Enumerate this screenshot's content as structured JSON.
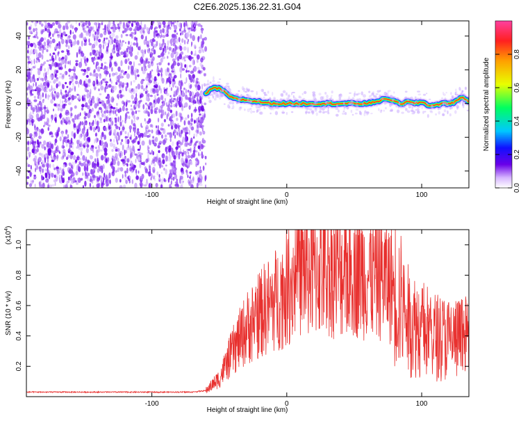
{
  "title": "C2E6.2025.136.22.31.G04",
  "colors": {
    "plot_background": "#ffffff",
    "noise_purple": "#6a00e8",
    "snr_line": "#e8302e",
    "ridge_core": "#f03030"
  },
  "chart_data": [
    {
      "type": "heatmap",
      "title": "C2E6.2025.136.22.31.G04",
      "xlabel": "Height of straight line (km)",
      "ylabel": "Frequency (Hz)",
      "xlim": [
        -193,
        135
      ],
      "ylim": [
        -50,
        49
      ],
      "xticks": [
        -100,
        0,
        100
      ],
      "yticks": [
        -40,
        -20,
        0,
        20,
        40
      ],
      "colorbar": {
        "label": "Normalized spectral amplitude",
        "range": [
          0,
          1
        ],
        "ticks": [
          "0.0",
          "0.2",
          "0.4",
          "0.6",
          "0.8"
        ],
        "colormap": [
          "#ffffff",
          "#d8b8ff",
          "#6a00e8",
          "#1010ff",
          "#00c8ff",
          "#00ff60",
          "#e8ff00",
          "#ffa000",
          "#ff2020",
          "#ff40a0"
        ]
      },
      "noise_region_x": [
        -193,
        -60
      ],
      "ridge": {
        "x": [
          -60,
          -55,
          -50,
          -45,
          -40,
          -30,
          -20,
          -10,
          0,
          20,
          40,
          60,
          70,
          75,
          80,
          85,
          90,
          95,
          100,
          105,
          110,
          115,
          120,
          125,
          130,
          135
        ],
        "freq": [
          6,
          9,
          9,
          6,
          3,
          2,
          1,
          0,
          0,
          0,
          0,
          0,
          2,
          3,
          1,
          0,
          1,
          0,
          1,
          -1,
          -1,
          0,
          0,
          1,
          4,
          1
        ]
      }
    },
    {
      "type": "line",
      "xlabel": "Height of straight line (km)",
      "ylabel": "SNR (10 * v/v)",
      "ylabel_scale": "(x10",
      "ylabel_exponent": "4",
      "xlim": [
        -193,
        135
      ],
      "ylim": [
        0,
        1.1
      ],
      "xticks": [
        -100,
        0,
        100
      ],
      "yticks": [
        "0.2",
        "0.4",
        "0.6",
        "0.8",
        "1.0"
      ],
      "series": [
        {
          "x": [
            -193,
            -150,
            -100,
            -70,
            -60,
            -50,
            -40,
            -30,
            -20,
            -10,
            0,
            10,
            20,
            30,
            40,
            50,
            60,
            70,
            80,
            90,
            100,
            110,
            120,
            130,
            135
          ],
          "y": [
            0.03,
            0.03,
            0.03,
            0.03,
            0.04,
            0.12,
            0.3,
            0.45,
            0.55,
            0.62,
            0.72,
            0.85,
            0.82,
            0.85,
            0.82,
            0.85,
            0.8,
            0.8,
            0.72,
            0.5,
            0.45,
            0.4,
            0.38,
            0.38,
            0.4
          ]
        }
      ]
    }
  ]
}
